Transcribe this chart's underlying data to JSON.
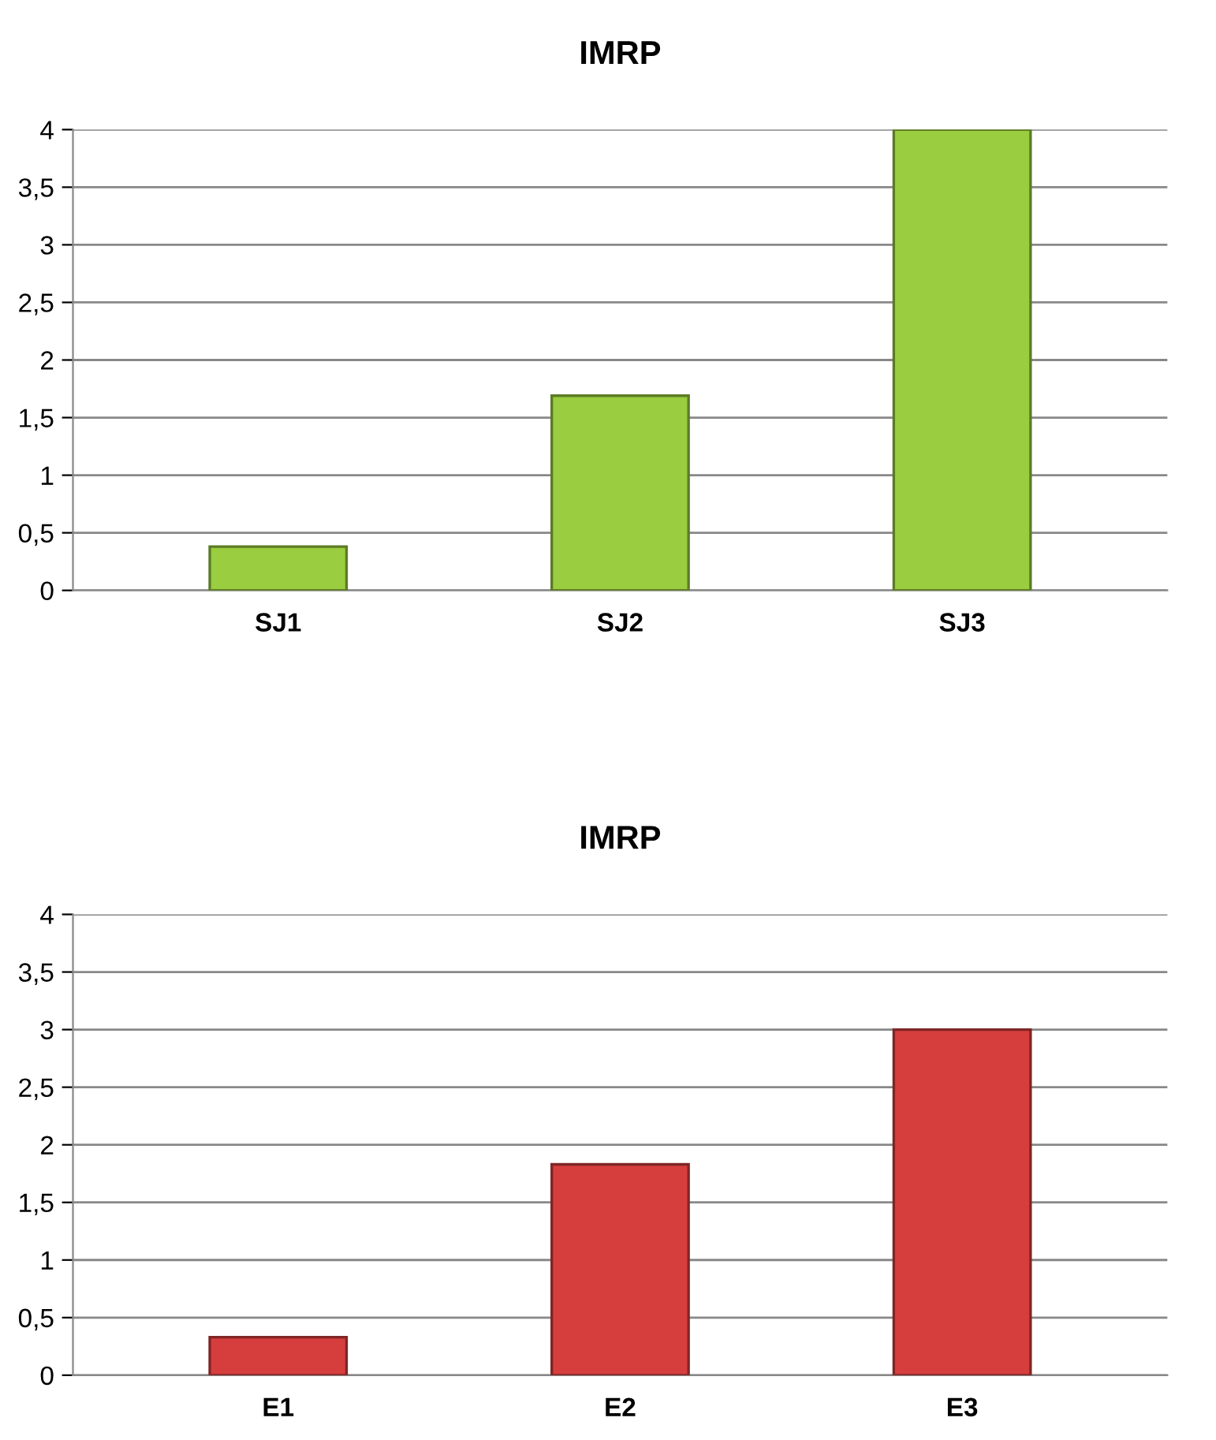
{
  "chart_data": [
    {
      "type": "bar",
      "title": "IMRP",
      "categories": [
        "SJ1",
        "SJ2",
        "SJ3"
      ],
      "values": [
        0.38,
        1.69,
        4
      ],
      "color": "#9acd3f",
      "ylim": [
        0,
        4
      ],
      "yticks": [
        0,
        {
          "value": 0.5,
          "label": "0,5"
        },
        1,
        {
          "value": 1.5,
          "label": "1,5"
        },
        2,
        {
          "value": 2.5,
          "label": "2,5"
        },
        3,
        {
          "value": 3.5,
          "label": "3,5"
        },
        4
      ],
      "grid": "y"
    },
    {
      "type": "bar",
      "title": "IMRP",
      "categories": [
        "E1",
        "E2",
        "E3"
      ],
      "values": [
        0.33,
        1.83,
        3
      ],
      "color": "#d63e3e",
      "ylim": [
        0,
        4
      ],
      "yticks": [
        0,
        {
          "value": 0.5,
          "label": "0,5"
        },
        1,
        {
          "value": 1.5,
          "label": "1,5"
        },
        2,
        {
          "value": 2.5,
          "label": "2,5"
        },
        3,
        {
          "value": 3.5,
          "label": "3,5"
        },
        4
      ],
      "grid": "y"
    }
  ]
}
